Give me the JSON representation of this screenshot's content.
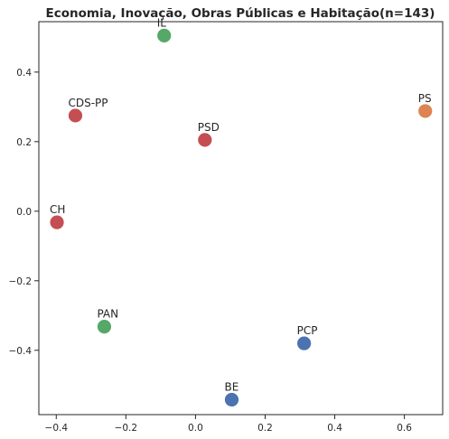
{
  "chart_data": {
    "type": "scatter",
    "title": "Economia, Inovação, Obras Públicas e Habitação(n=143)",
    "xlabel": "",
    "ylabel": "",
    "xlim": [
      -0.45,
      0.71
    ],
    "ylim": [
      -0.585,
      0.545
    ],
    "grid": false,
    "x_ticks": [
      -0.4,
      -0.2,
      0.0,
      0.2,
      0.4,
      0.6
    ],
    "x_tick_labels": [
      "−0.4",
      "−0.2",
      "0.0",
      "0.2",
      "0.4",
      "0.6"
    ],
    "y_ticks": [
      -0.4,
      -0.2,
      0.0,
      0.2,
      0.4
    ],
    "y_tick_labels": [
      "−0.4",
      "−0.2",
      "0.0",
      "0.2",
      "0.4"
    ],
    "points": [
      {
        "label": "IL",
        "x": -0.09,
        "y": 0.505,
        "color": "#55a868"
      },
      {
        "label": "CDS-PP",
        "x": -0.345,
        "y": 0.275,
        "color": "#c44e52"
      },
      {
        "label": "PS",
        "x": 0.66,
        "y": 0.288,
        "color": "#dd8452"
      },
      {
        "label": "PSD",
        "x": 0.027,
        "y": 0.205,
        "color": "#c44e52"
      },
      {
        "label": "CH",
        "x": -0.398,
        "y": -0.032,
        "color": "#c44e52"
      },
      {
        "label": "PAN",
        "x": -0.262,
        "y": -0.332,
        "color": "#55a868"
      },
      {
        "label": "PCP",
        "x": 0.312,
        "y": -0.38,
        "color": "#4c72b0"
      },
      {
        "label": "BE",
        "x": 0.104,
        "y": -0.542,
        "color": "#4c72b0"
      }
    ]
  }
}
